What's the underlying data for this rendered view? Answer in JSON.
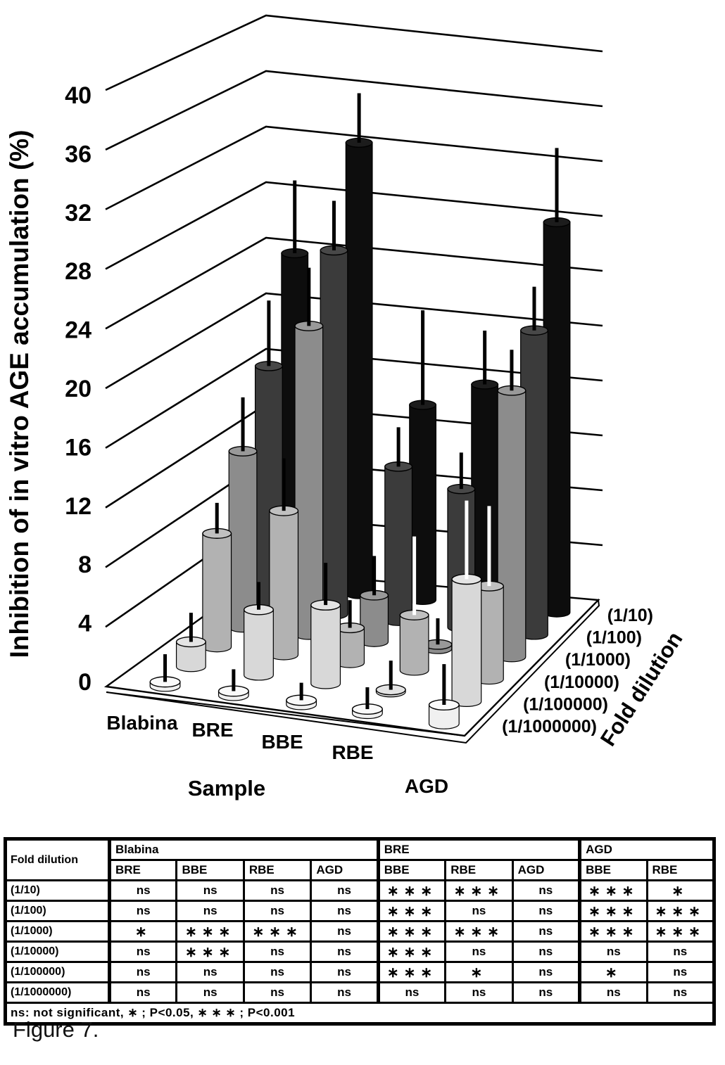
{
  "figure": {
    "caption": "Figure 7."
  },
  "chart_data": {
    "type": "bar",
    "subtype": "3d-cylinder-bars-with-error-bars",
    "title": "",
    "ylabel": "Inhibition of in vitro AGE accumulation (%)",
    "xlabel": "Sample",
    "zlabel": "Fold dilution",
    "ylim": [
      0,
      40
    ],
    "yticks": [
      0,
      4,
      8,
      12,
      16,
      20,
      24,
      28,
      32,
      36,
      40
    ],
    "grid": true,
    "categories": [
      "Blabina",
      "BRE",
      "BBE",
      "RBE",
      "AGD"
    ],
    "series": [
      {
        "name": "(1/10)",
        "color": "#0d0d0d",
        "top_color": "#1c1c1c",
        "values": [
          23.0,
          31.0,
          13.4,
          15.2,
          26.8
        ],
        "errors": [
          5.0,
          3.4,
          6.5,
          3.7,
          5.1
        ],
        "error_colors": [
          "#000000",
          "#000000",
          "#000000",
          "#000000",
          "#000000"
        ]
      },
      {
        "name": "(1/100)",
        "color": "#3b3b3b",
        "top_color": "#484848",
        "values": [
          16.6,
          25.0,
          10.6,
          9.5,
          20.9
        ],
        "errors": [
          4.5,
          3.4,
          2.7,
          2.5,
          3.0
        ],
        "error_colors": [
          "#000000",
          "#000000",
          "#000000",
          "#000000",
          "#000000"
        ]
      },
      {
        "name": "(1/1000)",
        "color": "#8c8c8c",
        "top_color": "#999999",
        "values": [
          12.1,
          21.2,
          3.2,
          0.3,
          18.3
        ],
        "errors": [
          3.7,
          4.0,
          2.7,
          1.8,
          2.8
        ],
        "error_colors": [
          "#000000",
          "#000000",
          "#000000",
          "#000000",
          "#000000"
        ]
      },
      {
        "name": "(1/10000)",
        "color": "#b2b2b2",
        "top_color": "#c0c0c0",
        "values": [
          7.8,
          9.9,
          2.4,
          3.8,
          6.4
        ],
        "errors": [
          2.1,
          3.6,
          1.9,
          5.4,
          5.5
        ],
        "error_colors": [
          "#000000",
          "#000000",
          "#000000",
          "#ffffff",
          "#ffffff"
        ]
      },
      {
        "name": "(1/100000)",
        "color": "#d8d8d8",
        "top_color": "#e4e4e4",
        "values": [
          1.7,
          4.5,
          5.4,
          0.15,
          8.4
        ],
        "errors": [
          2.0,
          1.9,
          2.9,
          2.0,
          5.4
        ],
        "error_colors": [
          "#000000",
          "#000000",
          "#000000",
          "#000000",
          "#ffffff"
        ]
      },
      {
        "name": "(1/1000000)",
        "color": "#f0f0f0",
        "top_color": "#fafafa",
        "values": [
          0.3,
          0.3,
          0.3,
          0.3,
          1.3
        ],
        "errors": [
          1.9,
          1.5,
          1.2,
          1.5,
          2.8
        ],
        "error_colors": [
          "#000000",
          "#000000",
          "#000000",
          "#000000",
          "#000000"
        ]
      }
    ]
  },
  "table": {
    "corner_label": "Fold dilution",
    "groups": [
      {
        "label": "Blabina",
        "cols": [
          "BRE",
          "BBE",
          "RBE",
          "AGD"
        ]
      },
      {
        "label": "BRE",
        "cols": [
          "BBE",
          "RBE",
          "AGD"
        ]
      },
      {
        "label": "AGD",
        "cols": [
          "BBE",
          "RBE"
        ]
      }
    ],
    "rows": [
      {
        "label": "(1/10)",
        "cells": [
          "ns",
          "ns",
          "ns",
          "ns",
          "∗∗∗",
          "∗∗∗",
          "ns",
          "∗∗∗",
          "∗"
        ]
      },
      {
        "label": "(1/100)",
        "cells": [
          "ns",
          "ns",
          "ns",
          "ns",
          "∗∗∗",
          "ns",
          "ns",
          "∗∗∗",
          "∗∗∗"
        ]
      },
      {
        "label": "(1/1000)",
        "cells": [
          "∗",
          "∗∗∗",
          "∗∗∗",
          "ns",
          "∗∗∗",
          "∗∗∗",
          "ns",
          "∗∗∗",
          "∗∗∗"
        ]
      },
      {
        "label": "(1/10000)",
        "cells": [
          "ns",
          "∗∗∗",
          "ns",
          "ns",
          "∗∗∗",
          "ns",
          "ns",
          "ns",
          "ns"
        ]
      },
      {
        "label": "(1/100000)",
        "cells": [
          "ns",
          "ns",
          "ns",
          "ns",
          "∗∗∗",
          "∗",
          "ns",
          "∗",
          "ns"
        ]
      },
      {
        "label": "(1/1000000)",
        "cells": [
          "ns",
          "ns",
          "ns",
          "ns",
          "ns",
          "ns",
          "ns",
          "ns",
          "ns"
        ]
      }
    ],
    "footnote": "ns: not significant, ∗ ;    P<0.05, ∗ ∗ ∗ ; P<0.001"
  }
}
